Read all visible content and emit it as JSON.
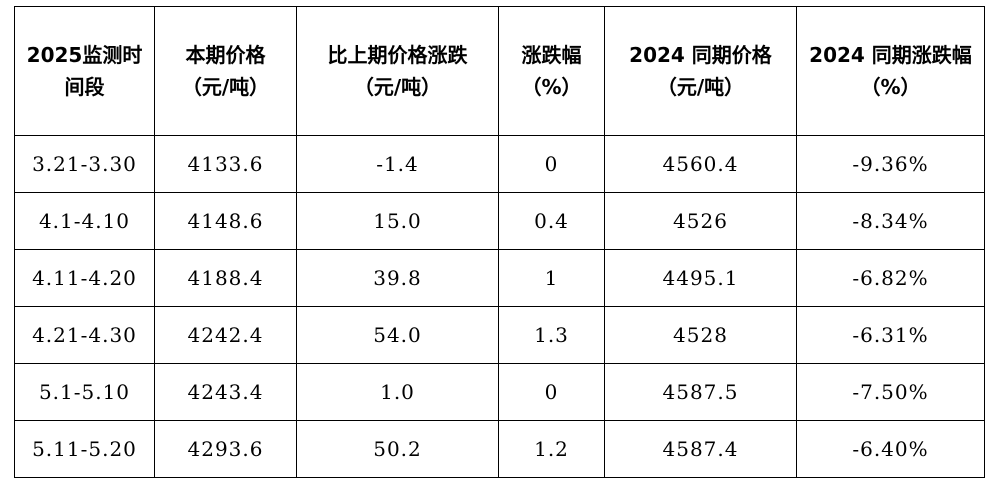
{
  "table": {
    "headers": [
      {
        "line1": "2025监测时",
        "line2": "间段"
      },
      {
        "line1": "本期价格",
        "line2": "（元/吨）"
      },
      {
        "line1": "比上期价格涨跌",
        "line2": "（元/吨）"
      },
      {
        "line1": "涨跌幅",
        "line2": "（%）"
      },
      {
        "line1": "2024 同期价格",
        "line2": "（元/吨）"
      },
      {
        "line1": "2024 同期涨跌幅",
        "line2": "（%）"
      }
    ],
    "rows": [
      [
        "3.21-3.30",
        "4133.6",
        "-1.4",
        "0",
        "4560.4",
        "-9.36%"
      ],
      [
        "4.1-4.10",
        "4148.6",
        "15.0",
        "0.4",
        "4526",
        "-8.34%"
      ],
      [
        "4.11-4.20",
        "4188.4",
        "39.8",
        "1",
        "4495.1",
        "-6.82%"
      ],
      [
        "4.21-4.30",
        "4242.4",
        "54.0",
        "1.3",
        "4528",
        "-6.31%"
      ],
      [
        "5.1-5.10",
        "4243.4",
        "1.0",
        "0",
        "4587.5",
        "-7.50%"
      ],
      [
        "5.11-5.20",
        "4293.6",
        "50.2",
        "1.2",
        "4587.4",
        "-6.40%"
      ]
    ]
  }
}
